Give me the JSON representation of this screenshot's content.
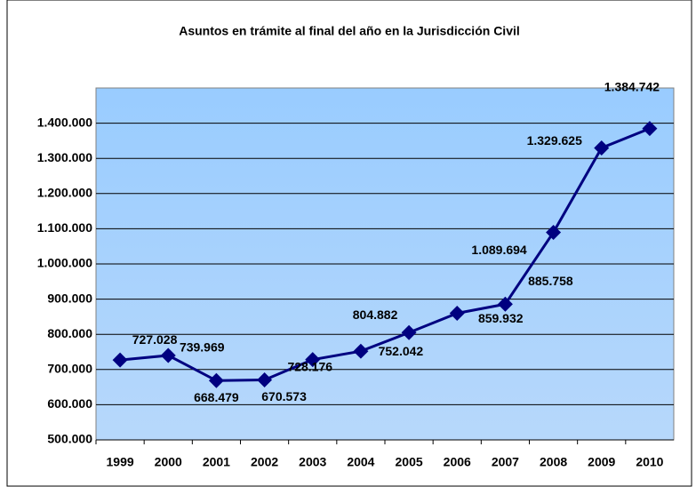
{
  "chart_data": {
    "type": "line",
    "title": "Asuntos en trámite al final del año en la Jurisdicción Civil",
    "categories": [
      "1999",
      "2000",
      "2001",
      "2002",
      "2003",
      "2004",
      "2005",
      "2006",
      "2007",
      "2008",
      "2009",
      "2010"
    ],
    "series": [
      {
        "name": "Asuntos en trámite",
        "color": "#000080",
        "values": [
          727028,
          739969,
          668479,
          670573,
          728176,
          752042,
          804882,
          859932,
          885758,
          1089694,
          1329625,
          1384742
        ],
        "value_labels": [
          "727.028",
          "739.969",
          "668.479",
          "670.573",
          "728.176",
          "752.042",
          "804.882",
          "859.932",
          "885.758",
          "1.089.694",
          "1.329.625",
          "1.384.742"
        ]
      }
    ],
    "ylim": [
      500000,
      1500000
    ],
    "yticks": [
      {
        "value": 500000,
        "label": "500.000"
      },
      {
        "value": 600000,
        "label": "600.000"
      },
      {
        "value": 700000,
        "label": "700.000"
      },
      {
        "value": 800000,
        "label": "800.000"
      },
      {
        "value": 900000,
        "label": "900.000"
      },
      {
        "value": 1000000,
        "label": "1.000.000"
      },
      {
        "value": 1100000,
        "label": "1.100.000"
      },
      {
        "value": 1200000,
        "label": "1.200.000"
      },
      {
        "value": 1300000,
        "label": "1.300.000"
      },
      {
        "value": 1400000,
        "label": "1.400.000"
      }
    ],
    "grid": true
  }
}
